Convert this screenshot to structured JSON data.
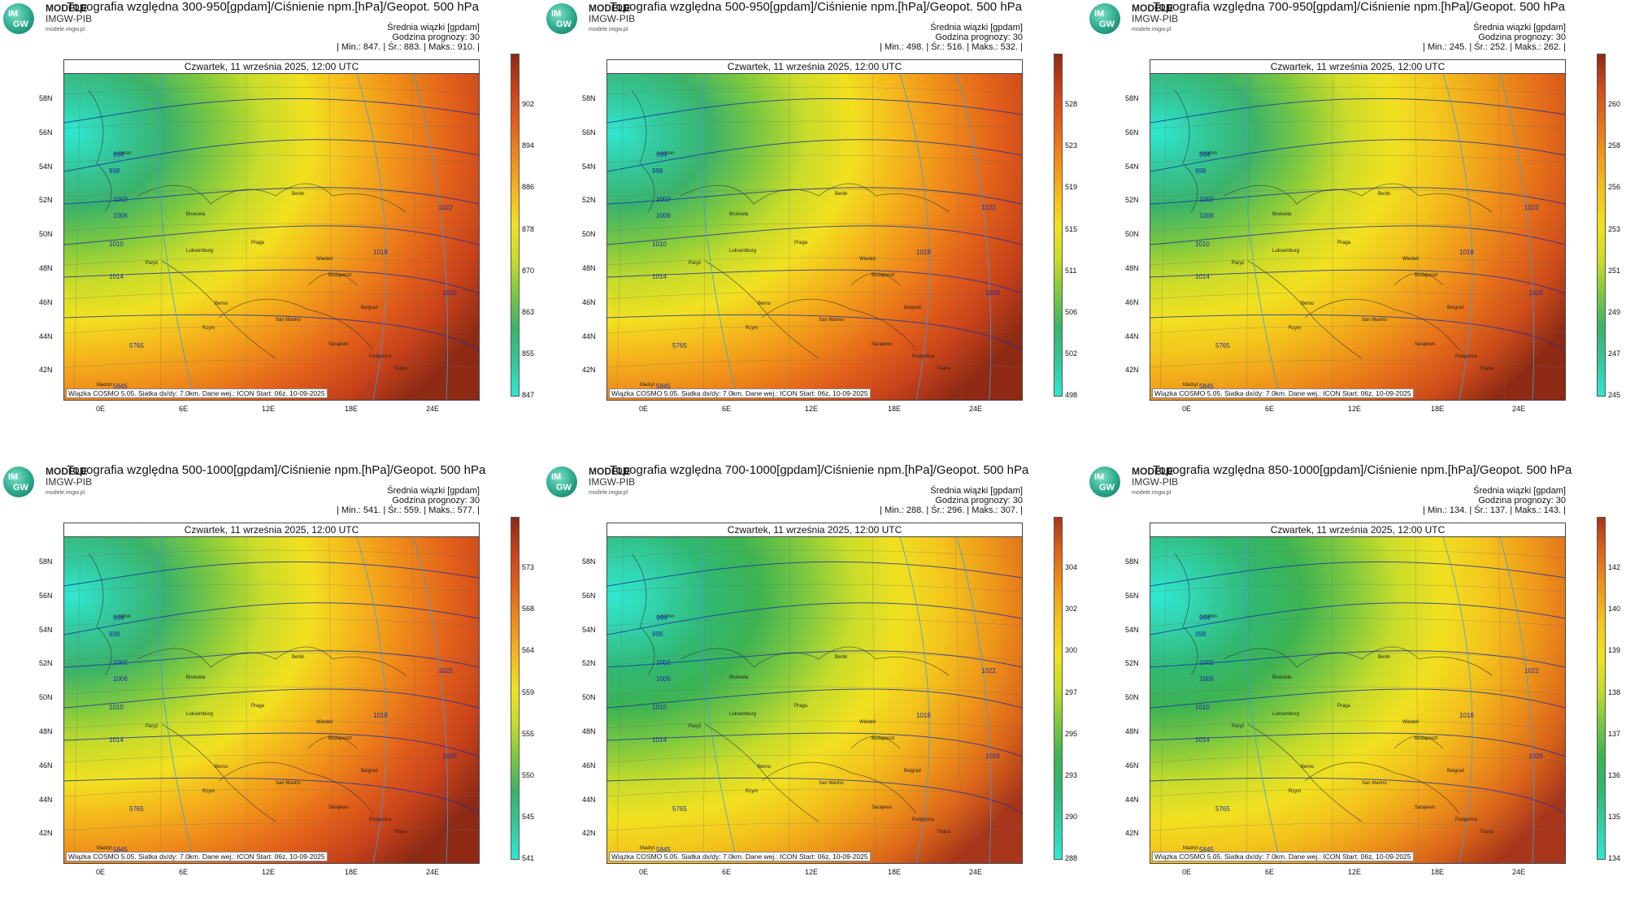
{
  "brand": {
    "name_line1": "MODELE",
    "name_line2": "IMGW-PIB",
    "url": "modele.imgw.pl",
    "logo_top": "IM",
    "logo_bottom": "GW"
  },
  "panels": [
    {
      "title": "Topografia względna 300-950[gpdam]/Ciśnienie npm.[hPa]/Geopot. 500 hPa",
      "meta_line1": "Średnia wiązki [gpdam]",
      "meta_line2": "Godzina prognozy: 30",
      "stats": "| Min.:   847. | Śr.:   883. | Maks.:   910. |",
      "ticks": [
        "902",
        "894",
        "886",
        "878",
        "870",
        "863",
        "855",
        "847"
      ],
      "scheme": "warm"
    },
    {
      "title": "Topografia względna 500-950[gpdam]/Ciśnienie npm.[hPa]/Geopot. 500 hPa",
      "meta_line1": "Średnia wiązki [gpdam]",
      "meta_line2": "Godzina prognozy: 30",
      "stats": "| Min.:   498. | Śr.:   516. | Maks.:   532. |",
      "ticks": [
        "528",
        "523",
        "519",
        "515",
        "511",
        "506",
        "502",
        "498"
      ],
      "scheme": "warm"
    },
    {
      "title": "Topografia względna 700-950[gpdam]/Ciśnienie npm.[hPa]/Geopot. 500 hPa",
      "meta_line1": "Średnia wiązki [gpdam]",
      "meta_line2": "Godzina prognozy: 30",
      "stats": "| Min.:   245. | Śr.:   252. | Maks.:   262. |",
      "ticks": [
        "260",
        "258",
        "256",
        "253",
        "251",
        "249",
        "247",
        "245"
      ],
      "scheme": "yellow"
    },
    {
      "title": "Topografia względna 500-1000[gpdam]/Ciśnienie npm.[hPa]/Geopot. 500 hPa",
      "meta_line1": "Średnia wiązki [gpdam]",
      "meta_line2": "Godzina prognozy: 30",
      "stats": "| Min.:   541. | Śr.:   559. | Maks.:   577. |",
      "ticks": [
        "573",
        "568",
        "564",
        "559",
        "555",
        "550",
        "545",
        "541"
      ],
      "scheme": "warm"
    },
    {
      "title": "Topografia względna 700-1000[gpdam]/Ciśnienie npm.[hPa]/Geopot. 500 hPa",
      "meta_line1": "Średnia wiązki [gpdam]",
      "meta_line2": "Godzina prognozy: 30",
      "stats": "| Min.:   288. | Śr.:   296. | Maks.:   307. |",
      "ticks": [
        "304",
        "302",
        "300",
        "297",
        "295",
        "293",
        "290",
        "288"
      ],
      "scheme": "green"
    },
    {
      "title": "Topografia względna 850-1000[gpdam]/Ciśnienie npm.[hPa]/Geopot. 500 hPa",
      "meta_line1": "Średnia wiązki [gpdam]",
      "meta_line2": "Godzina prognozy: 30",
      "stats": "| Min.:   134. | Śr.:   137. | Maks.:   143. |",
      "ticks": [
        "142",
        "140",
        "139",
        "138",
        "137",
        "136",
        "135",
        "134"
      ],
      "scheme": "green"
    }
  ],
  "map": {
    "date": "Czwartek, 11 września 2025, 12:00 UTC",
    "footer": "Wiązka COSMO 5.05. Siatka dx/dy: 7.0km. Dane wej.: ICON Start: 06z, 10-09-2025",
    "lat_labels": [
      "58N",
      "56N",
      "54N",
      "52N",
      "50N",
      "48N",
      "46N",
      "44N",
      "42N"
    ],
    "lon_labels": [
      "0E",
      "6E",
      "12E",
      "18E",
      "24E"
    ],
    "cities": [
      "London",
      "Bruksela",
      "Paryż",
      "Luksemburg",
      "Praga",
      "Berlin",
      "Wiedeń",
      "Budapeszt",
      "Belgrad",
      "Berno",
      "Sarajewo",
      "Rzym",
      "Podgorica",
      "Tirana",
      "Madryt",
      "Andora",
      "San Marino"
    ],
    "isobars": [
      "994",
      "998",
      "1002",
      "1006",
      "1010",
      "1014",
      "1018",
      "1022",
      "1026",
      "5765",
      "5845"
    ]
  },
  "colors": {
    "contour_blue": "#1a2ea0",
    "border": "#444444"
  }
}
